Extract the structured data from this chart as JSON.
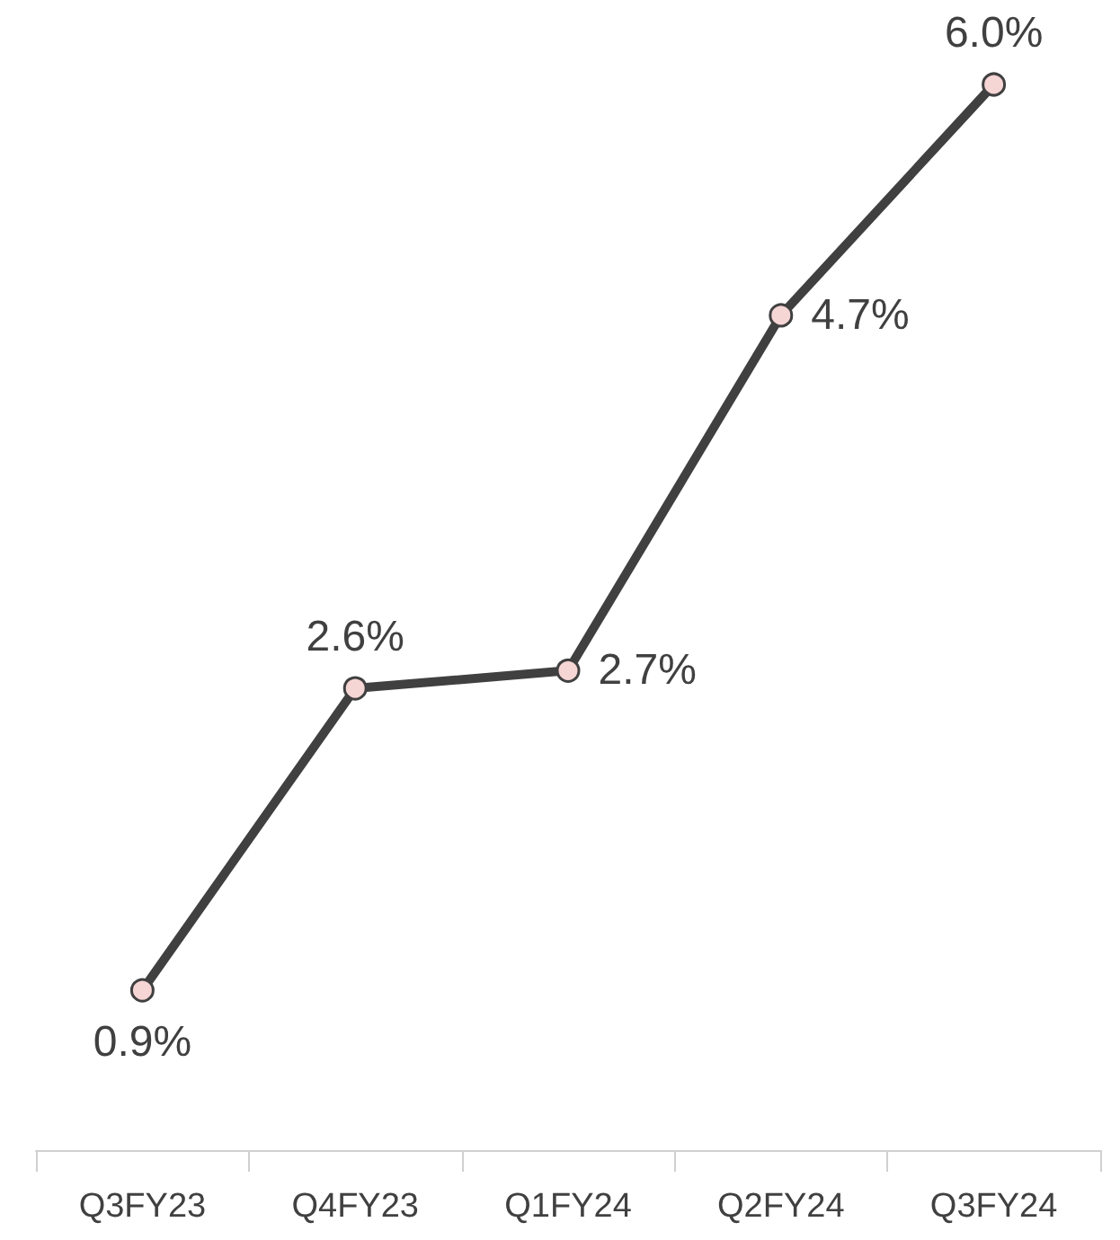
{
  "chart_data": {
    "type": "line",
    "categories": [
      "Q3FY23",
      "Q4FY23",
      "Q1FY24",
      "Q2FY24",
      "Q3FY24"
    ],
    "series": [
      {
        "color": "#404040",
        "values": [
          0.9,
          2.6,
          2.7,
          4.7,
          6.0
        ],
        "value_labels": [
          "0.9%",
          "2.6%",
          "2.7%",
          "4.7%",
          "6.0%"
        ]
      }
    ],
    "marker": "circle",
    "line_style": "solid",
    "grid": false,
    "tick_labels": "x"
  }
}
